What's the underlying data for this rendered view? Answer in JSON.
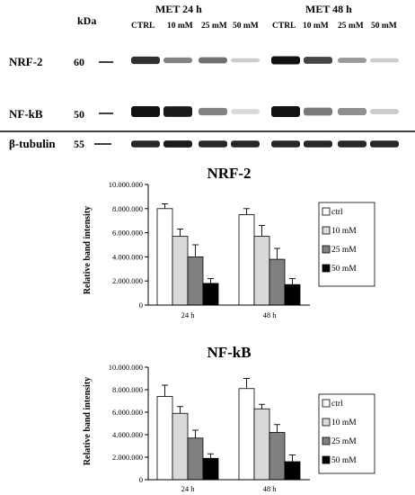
{
  "blot": {
    "kda_header": "kDa",
    "groups": [
      {
        "label": "MET 24 h",
        "lanes": [
          "CTRL",
          "10 mM",
          "25 mM",
          "50 mM"
        ]
      },
      {
        "label": "MET 48 h",
        "lanes": [
          "CTRL",
          "10 mM",
          "25 mM",
          "50 mM"
        ]
      }
    ],
    "rows": [
      {
        "label": "NRF-2",
        "kda": "60",
        "bands": [
          0.85,
          0.45,
          0.55,
          0.1,
          1.0,
          0.75,
          0.35,
          0.1
        ]
      },
      {
        "label": "NF-kB",
        "kda": "50",
        "bands": [
          1.0,
          0.95,
          0.45,
          0.05,
          1.0,
          0.5,
          0.4,
          0.1
        ]
      },
      {
        "label": "β-tubulin",
        "kda": "55",
        "bands": [
          0.9,
          0.95,
          0.9,
          0.9,
          0.9,
          0.9,
          0.9,
          0.9
        ]
      }
    ],
    "colors": {
      "band": "#111111"
    }
  },
  "chart_data": [
    {
      "type": "bar",
      "title": "NRF-2",
      "ylabel": "Relative band intensity",
      "xlabel": "",
      "categories": [
        "24 h",
        "48 h"
      ],
      "ylim": [
        0,
        10000000
      ],
      "yticks": [
        0,
        2000000,
        4000000,
        6000000,
        8000000,
        10000000
      ],
      "ytick_labels": [
        "0",
        "2.000.000",
        "4.000.000",
        "6.000.000",
        "8.000.000",
        "10.000.000"
      ],
      "legend_position": "right",
      "series": [
        {
          "name": "ctrl",
          "values": [
            8000000,
            7500000
          ],
          "errors": [
            400000,
            500000
          ],
          "color": "#ffffff"
        },
        {
          "name": "10 mM",
          "values": [
            5700000,
            5700000
          ],
          "errors": [
            600000,
            900000
          ],
          "color": "#d9d9d9"
        },
        {
          "name": "25 mM",
          "values": [
            4000000,
            3800000
          ],
          "errors": [
            1000000,
            900000
          ],
          "color": "#808080"
        },
        {
          "name": "50 mM",
          "values": [
            1800000,
            1700000
          ],
          "errors": [
            400000,
            500000
          ],
          "color": "#000000"
        }
      ]
    },
    {
      "type": "bar",
      "title": "NF-kB",
      "ylabel": "Relative band intensity",
      "xlabel": "",
      "categories": [
        "24 h",
        "48 h"
      ],
      "ylim": [
        0,
        10000000
      ],
      "yticks": [
        0,
        2000000,
        4000000,
        6000000,
        8000000,
        10000000
      ],
      "ytick_labels": [
        "0",
        "2.000.000",
        "4.000.000",
        "6.000.000",
        "8.000.000",
        "10.000.000"
      ],
      "legend_position": "right",
      "series": [
        {
          "name": "ctrl",
          "values": [
            7400000,
            8100000
          ],
          "errors": [
            1000000,
            900000
          ],
          "color": "#ffffff"
        },
        {
          "name": "10 mM",
          "values": [
            5900000,
            6300000
          ],
          "errors": [
            600000,
            400000
          ],
          "color": "#d9d9d9"
        },
        {
          "name": "25 mM",
          "values": [
            3700000,
            4200000
          ],
          "errors": [
            700000,
            700000
          ],
          "color": "#808080"
        },
        {
          "name": "50 mM",
          "values": [
            1900000,
            1600000
          ],
          "errors": [
            400000,
            600000
          ],
          "color": "#000000"
        }
      ]
    }
  ]
}
